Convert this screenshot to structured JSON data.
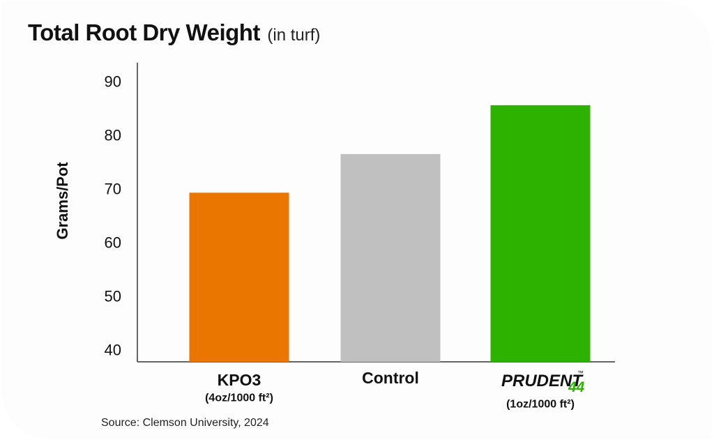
{
  "title": "Total Root Dry Weight",
  "subtitle": "(in turf)",
  "source": "Source: Clemson University, 2024",
  "chart_data": {
    "type": "bar",
    "title": "Total Root Dry Weight",
    "subtitle": "(in turf)",
    "ylabel": "Grams/Pot",
    "xlabel": "",
    "ylim": [
      37,
      93
    ],
    "yticks": [
      40,
      50,
      60,
      70,
      80,
      90
    ],
    "grid": false,
    "categories": [
      "KPO3",
      "Control",
      "PRUDENT 44"
    ],
    "category_sublabels": [
      "(4oz/1000 ft²)",
      "",
      "(1oz/1000 ft²)"
    ],
    "values": [
      69.3,
      76.5,
      85.6
    ],
    "colors": [
      "#ea7600",
      "#c0c0c0",
      "#2db200"
    ],
    "brand_logo": {
      "text": "PRUDENT",
      "superscript": "™",
      "number": "44",
      "text_color": "#111111",
      "number_color": "#2db200"
    }
  }
}
